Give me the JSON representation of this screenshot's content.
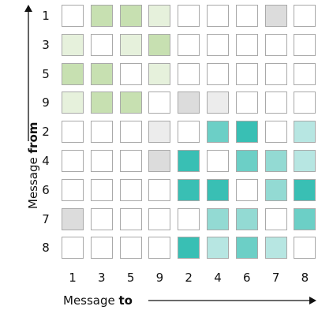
{
  "axes": {
    "x_title": {
      "prefix": "Message ",
      "bold": "to"
    },
    "y_title": {
      "prefix": "Message ",
      "bold": "from"
    }
  },
  "labels": [
    "1",
    "3",
    "5",
    "9",
    "2",
    "4",
    "6",
    "7",
    "8"
  ],
  "palette": {
    "0": "#ffffff",
    "g1": "#e6f1dc",
    "g2": "#c7e0b1",
    "grey": "#dcdcdc",
    "grey_light": "#ececec",
    "t1": "#b7e6e2",
    "t2": "#93dad3",
    "t3": "#6ccfc6",
    "t4": "#39bfb4"
  },
  "matrix": [
    [
      "0",
      "g2",
      "g2",
      "g1",
      "0",
      "0",
      "0",
      "grey",
      "0"
    ],
    [
      "g1",
      "0",
      "g1",
      "g2",
      "0",
      "0",
      "0",
      "0",
      "0"
    ],
    [
      "g2",
      "g2",
      "0",
      "g1",
      "0",
      "0",
      "0",
      "0",
      "0"
    ],
    [
      "g1",
      "g2",
      "g2",
      "0",
      "grey",
      "grey_light",
      "0",
      "0",
      "0"
    ],
    [
      "0",
      "0",
      "0",
      "grey_light",
      "0",
      "t3",
      "t4",
      "0",
      "t1"
    ],
    [
      "0",
      "0",
      "0",
      "grey",
      "t4",
      "0",
      "t3",
      "t2",
      "t1"
    ],
    [
      "0",
      "0",
      "0",
      "0",
      "t4",
      "t4",
      "0",
      "t2",
      "t4"
    ],
    [
      "grey",
      "0",
      "0",
      "0",
      "0",
      "t2",
      "t2",
      "0",
      "t3"
    ],
    [
      "0",
      "0",
      "0",
      "0",
      "t4",
      "t1",
      "t3",
      "t1",
      "0"
    ]
  ]
}
